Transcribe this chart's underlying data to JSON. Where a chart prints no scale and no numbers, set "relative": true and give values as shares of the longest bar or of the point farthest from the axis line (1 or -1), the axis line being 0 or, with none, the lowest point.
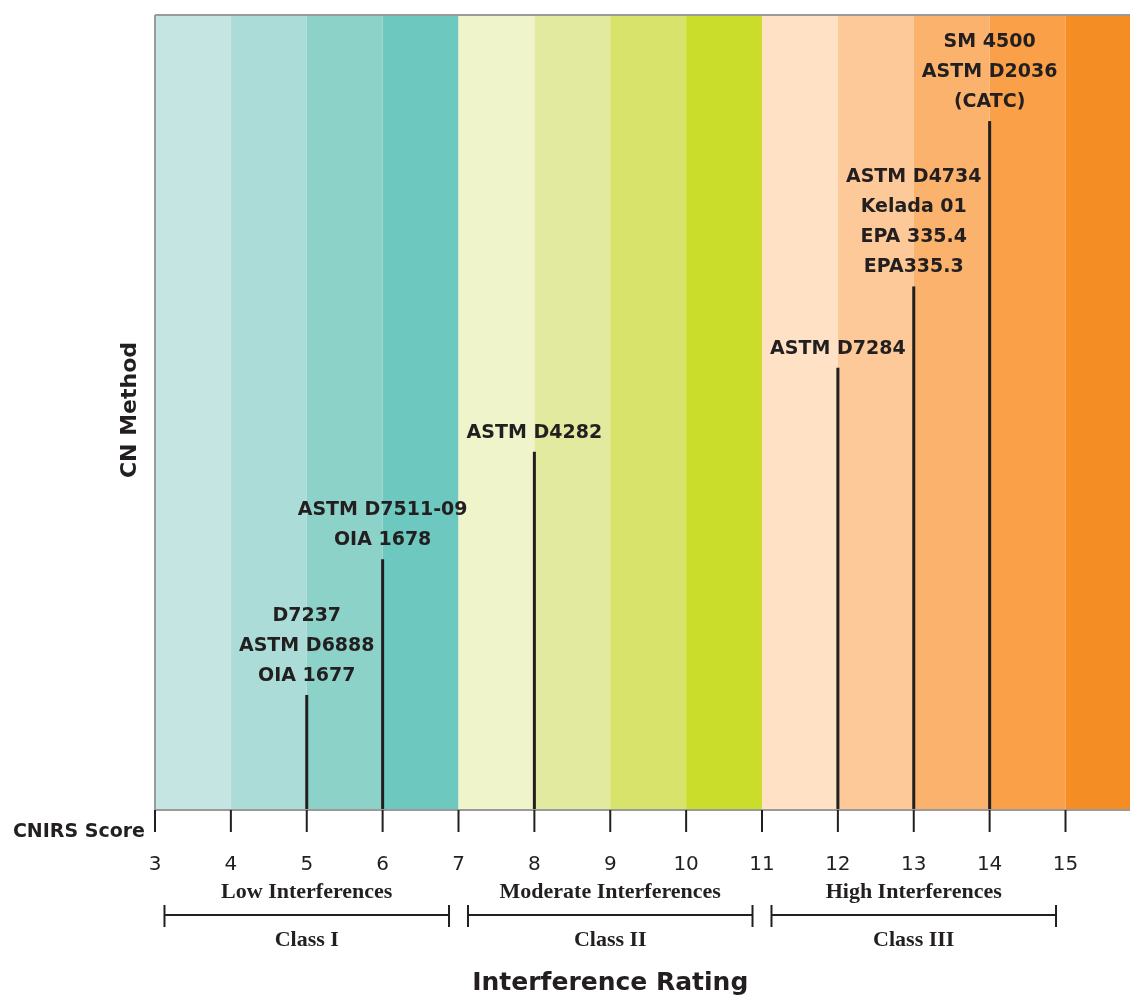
{
  "chart_data": {
    "type": "bar",
    "relative": true,
    "xlabel": "Interference Rating",
    "ylabel": "CN Method",
    "x": [
      5,
      6,
      8,
      12,
      13,
      14
    ],
    "values": [
      0.167,
      0.364,
      0.52,
      0.642,
      0.76,
      1
    ],
    "color": "#231f20",
    "xlim": [
      3,
      15.85
    ],
    "xticks": [
      3,
      4,
      5,
      6,
      7,
      8,
      9,
      10,
      11,
      12,
      13,
      14,
      15
    ],
    "bands": [
      {
        "axis": "x",
        "from": 3,
        "to": 4,
        "color": "#c5e5e3"
      },
      {
        "axis": "x",
        "from": 4,
        "to": 5,
        "color": "#acdcd7"
      },
      {
        "axis": "x",
        "from": 5,
        "to": 6,
        "color": "#8dd2c9"
      },
      {
        "axis": "x",
        "from": 6,
        "to": 7,
        "color": "#6dc8bf"
      },
      {
        "axis": "x",
        "from": 7,
        "to": 8,
        "color": "#eff4cb"
      },
      {
        "axis": "x",
        "from": 8,
        "to": 9,
        "color": "#e2eaa0"
      },
      {
        "axis": "x",
        "from": 9,
        "to": 10,
        "color": "#d8e36b"
      },
      {
        "axis": "x",
        "from": 10,
        "to": 11,
        "color": "#cadd2b"
      },
      {
        "axis": "x",
        "from": 11,
        "to": 12,
        "color": "#ffe2c6"
      },
      {
        "axis": "x",
        "from": 12,
        "to": 13,
        "color": "#fdc999"
      },
      {
        "axis": "x",
        "from": 13,
        "to": 14,
        "color": "#fbb26d"
      },
      {
        "axis": "x",
        "from": 14,
        "to": 15,
        "color": "#f9a048"
      },
      {
        "axis": "x",
        "from": 15,
        "to": 15.85,
        "color": "#f48d23"
      }
    ],
    "annotations": [
      {
        "text": "D7237\nASTM D6888\nOIA 1677",
        "x": 5,
        "y": 0.167
      },
      {
        "text": "ASTM D7511-09\nOIA 1678",
        "x": 6,
        "y": 0.364
      },
      {
        "text": "ASTM D4282",
        "x": 8,
        "y": 0.52
      },
      {
        "text": "ASTM D7284",
        "x": 12,
        "y": 0.642
      },
      {
        "text": "ASTM D4734\nKelada 01\nEPA 335.4\nEPA335.3",
        "x": 13,
        "y": 0.76
      },
      {
        "text": "SM 4500\nASTM D2036\n(CATC)",
        "x": 14,
        "y": 1
      },
      "CNIRS Score",
      "Low Interferences",
      "Class I",
      "Moderate Interferences",
      "Class II",
      "High Interferences",
      "Class III"
    ]
  }
}
